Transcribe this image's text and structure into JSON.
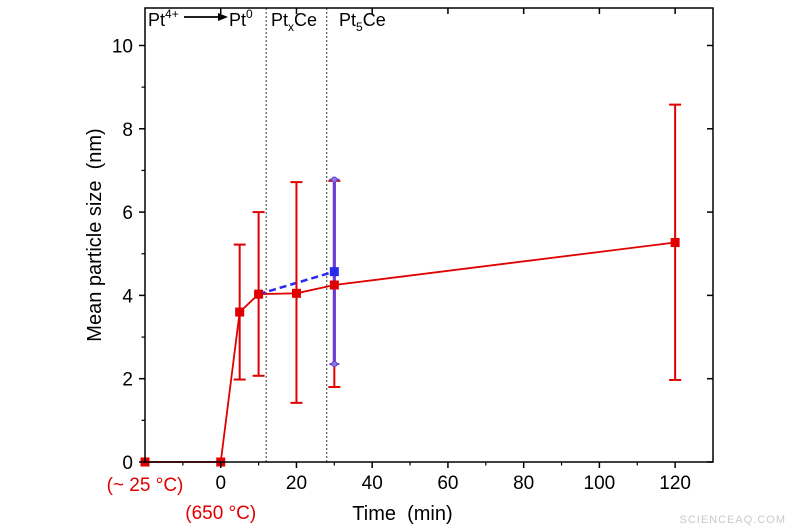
{
  "chart_data": {
    "type": "scatter",
    "xlabel": "Time  (min)",
    "ylabel": "Mean particle size  (nm)",
    "xlim": [
      -20,
      130
    ],
    "ylim": [
      0,
      10.9
    ],
    "x_ticks": [
      "0",
      "20",
      "40",
      "60",
      "80",
      "100",
      "120"
    ],
    "y_ticks": [
      "0",
      "2",
      "4",
      "6",
      "8",
      "10"
    ],
    "x_special_labels": [
      {
        "x": -20,
        "text": "(~ 25 °C)",
        "color": "#e00000"
      },
      {
        "x": 0,
        "text": "(650 °C)",
        "color": "#e00000"
      }
    ],
    "region_dividers_x": [
      12,
      28
    ],
    "region_labels": {
      "r1_base": "Pt",
      "r1_sup": "4+",
      "r1_target_base": "Pt",
      "r1_target_sup": "0",
      "r2_base": "Pt",
      "r2_sub": "x",
      "r2_tail": "Ce",
      "r3_base": "Pt",
      "r3_sub": "5",
      "r3_tail": "Ce"
    },
    "series": [
      {
        "color": "#e00000",
        "line_style": "solid",
        "marker": "square",
        "points": [
          {
            "x": -20,
            "y": 0
          },
          {
            "x": 0,
            "y": 0
          },
          {
            "x": 5,
            "y": 3.6,
            "err_low": 1.98,
            "err_high": 5.22
          },
          {
            "x": 10,
            "y": 4.03,
            "err_low": 2.07,
            "err_high": 6.0
          },
          {
            "x": 20,
            "y": 4.05,
            "err_low": 1.42,
            "err_high": 6.72
          },
          {
            "x": 30,
            "y": 4.25,
            "err_low": 1.8,
            "err_high": 6.75
          },
          {
            "x": 120,
            "y": 5.27,
            "err_low": 1.97,
            "err_high": 8.58
          }
        ]
      },
      {
        "color": "#2b2bf0",
        "err_color": "#6a3fd0",
        "line_style": "dashed",
        "marker": "square",
        "points": [
          {
            "x": 10,
            "y": 4.03
          },
          {
            "x": 30,
            "y": 4.57,
            "err_low": 2.35,
            "err_high": 6.78
          }
        ]
      }
    ]
  },
  "watermark": "SCIENCEAQ.COM"
}
